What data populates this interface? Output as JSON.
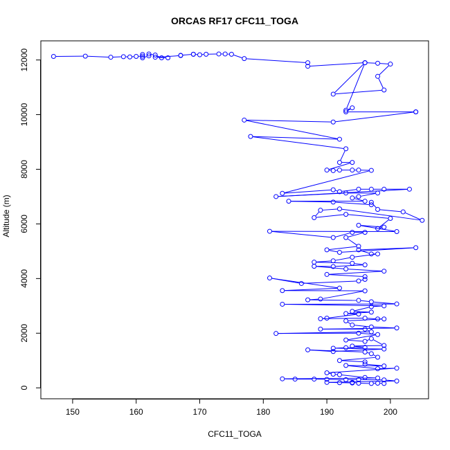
{
  "chart_data": {
    "type": "line",
    "title": "ORCAS RF17 CFC11_TOGA",
    "xlabel": "CFC11_TOGA",
    "ylabel": "Altitude (m)",
    "xlim": [
      145,
      206
    ],
    "ylim": [
      -400,
      12700
    ],
    "xticks": [
      150,
      160,
      170,
      180,
      190,
      200
    ],
    "yticks": [
      0,
      2000,
      4000,
      6000,
      8000,
      10000,
      12000
    ],
    "series": [
      {
        "name": "CFC11_TOGA",
        "color": "#0000ff",
        "marker": "open-circle",
        "points": [
          [
            147,
            12130
          ],
          [
            152,
            12140
          ],
          [
            156,
            12100
          ],
          [
            158,
            12120
          ],
          [
            159,
            12110
          ],
          [
            160,
            12130
          ],
          [
            161,
            12140
          ],
          [
            161,
            12200
          ],
          [
            161,
            12080
          ],
          [
            162,
            12150
          ],
          [
            162,
            12220
          ],
          [
            163,
            12180
          ],
          [
            164,
            12080
          ],
          [
            165,
            12080
          ],
          [
            163,
            12100
          ],
          [
            167,
            12160
          ],
          [
            167,
            12170
          ],
          [
            169,
            12210
          ],
          [
            169,
            12210
          ],
          [
            170,
            12190
          ],
          [
            171,
            12210
          ],
          [
            173,
            12220
          ],
          [
            174,
            12220
          ],
          [
            175,
            12210
          ],
          [
            177,
            12050
          ],
          [
            187,
            11900
          ],
          [
            187,
            11770
          ],
          [
            196,
            11900
          ],
          [
            196,
            11900
          ],
          [
            198,
            11880
          ],
          [
            200,
            11850
          ],
          [
            198,
            11400
          ],
          [
            199,
            10900
          ],
          [
            191,
            10750
          ],
          [
            196,
            11900
          ],
          [
            193,
            10160
          ],
          [
            194,
            10250
          ],
          [
            193,
            10100
          ],
          [
            204,
            10100
          ],
          [
            204,
            10100
          ],
          [
            191,
            9730
          ],
          [
            177,
            9800
          ],
          [
            192,
            9100
          ],
          [
            178,
            9200
          ],
          [
            193,
            8750
          ],
          [
            192,
            8250
          ],
          [
            194,
            8250
          ],
          [
            190,
            7970
          ],
          [
            191,
            7950
          ],
          [
            192,
            7970
          ],
          [
            194,
            7970
          ],
          [
            195,
            7970
          ],
          [
            197,
            7960
          ],
          [
            183,
            7120
          ],
          [
            191,
            7250
          ],
          [
            192,
            7180
          ],
          [
            195,
            7270
          ],
          [
            197,
            7270
          ],
          [
            199,
            7270
          ],
          [
            203,
            7270
          ],
          [
            182,
            7000
          ],
          [
            193,
            7130
          ],
          [
            198,
            7130
          ],
          [
            195,
            7000
          ],
          [
            194,
            6950
          ],
          [
            196,
            6830
          ],
          [
            184,
            6830
          ],
          [
            191,
            6800
          ],
          [
            197,
            6700
          ],
          [
            197,
            6790
          ],
          [
            198,
            6530
          ],
          [
            202,
            6440
          ],
          [
            205,
            6130
          ],
          [
            192,
            6550
          ],
          [
            189,
            6500
          ],
          [
            188,
            6230
          ],
          [
            193,
            6350
          ],
          [
            200,
            6200
          ],
          [
            198,
            5830
          ],
          [
            199,
            5880
          ],
          [
            195,
            5950
          ],
          [
            201,
            5720
          ],
          [
            181,
            5730
          ],
          [
            191,
            5500
          ],
          [
            194,
            5690
          ],
          [
            196,
            5690
          ],
          [
            193,
            5500
          ],
          [
            195,
            5180
          ],
          [
            190,
            5050
          ],
          [
            192,
            4960
          ],
          [
            204,
            5130
          ],
          [
            195,
            5050
          ],
          [
            197,
            4900
          ],
          [
            198,
            4900
          ],
          [
            194,
            4780
          ],
          [
            191,
            4650
          ],
          [
            188,
            4600
          ],
          [
            194,
            4560
          ],
          [
            196,
            4500
          ],
          [
            191,
            4440
          ],
          [
            188,
            4450
          ],
          [
            193,
            4350
          ],
          [
            199,
            4270
          ],
          [
            190,
            4150
          ],
          [
            196,
            4070
          ],
          [
            196,
            3970
          ],
          [
            195,
            3910
          ],
          [
            186,
            3820
          ],
          [
            181,
            4020
          ],
          [
            192,
            3650
          ],
          [
            183,
            3560
          ],
          [
            196,
            3550
          ],
          [
            189,
            3250
          ],
          [
            187,
            3220
          ],
          [
            195,
            3200
          ],
          [
            197,
            3150
          ],
          [
            201,
            3070
          ],
          [
            183,
            3060
          ],
          [
            199,
            3000
          ],
          [
            197,
            2970
          ],
          [
            194,
            2800
          ],
          [
            197,
            2770
          ],
          [
            193,
            2720
          ],
          [
            195,
            2700
          ],
          [
            190,
            2550
          ],
          [
            189,
            2530
          ],
          [
            196,
            2550
          ],
          [
            198,
            2520
          ],
          [
            199,
            2520
          ],
          [
            193,
            2450
          ],
          [
            194,
            2300
          ],
          [
            197,
            2230
          ],
          [
            201,
            2190
          ],
          [
            189,
            2150
          ],
          [
            196,
            2150
          ],
          [
            197,
            2050
          ],
          [
            182,
            1990
          ],
          [
            195,
            2000
          ],
          [
            198,
            1950
          ],
          [
            193,
            1750
          ],
          [
            196,
            1700
          ],
          [
            197,
            1800
          ],
          [
            199,
            1550
          ],
          [
            194,
            1530
          ],
          [
            196,
            1480
          ],
          [
            193,
            1470
          ],
          [
            191,
            1450
          ],
          [
            199,
            1420
          ],
          [
            191,
            1330
          ],
          [
            187,
            1390
          ],
          [
            196,
            1310
          ],
          [
            197,
            1250
          ],
          [
            198,
            1120
          ],
          [
            192,
            1000
          ],
          [
            196,
            950
          ],
          [
            196,
            870
          ],
          [
            199,
            800
          ],
          [
            193,
            820
          ],
          [
            198,
            700
          ],
          [
            201,
            720
          ],
          [
            190,
            550
          ],
          [
            191,
            500
          ],
          [
            192,
            480
          ],
          [
            196,
            380
          ],
          [
            198,
            360
          ],
          [
            183,
            330
          ],
          [
            185,
            320
          ],
          [
            188,
            320
          ],
          [
            190,
            310
          ],
          [
            193,
            300
          ],
          [
            195,
            300
          ],
          [
            199,
            290
          ],
          [
            201,
            250
          ],
          [
            190,
            200
          ],
          [
            192,
            190
          ],
          [
            194,
            180
          ],
          [
            194,
            200
          ],
          [
            195,
            170
          ],
          [
            197,
            160
          ],
          [
            198,
            170
          ],
          [
            199,
            160
          ]
        ]
      }
    ]
  }
}
